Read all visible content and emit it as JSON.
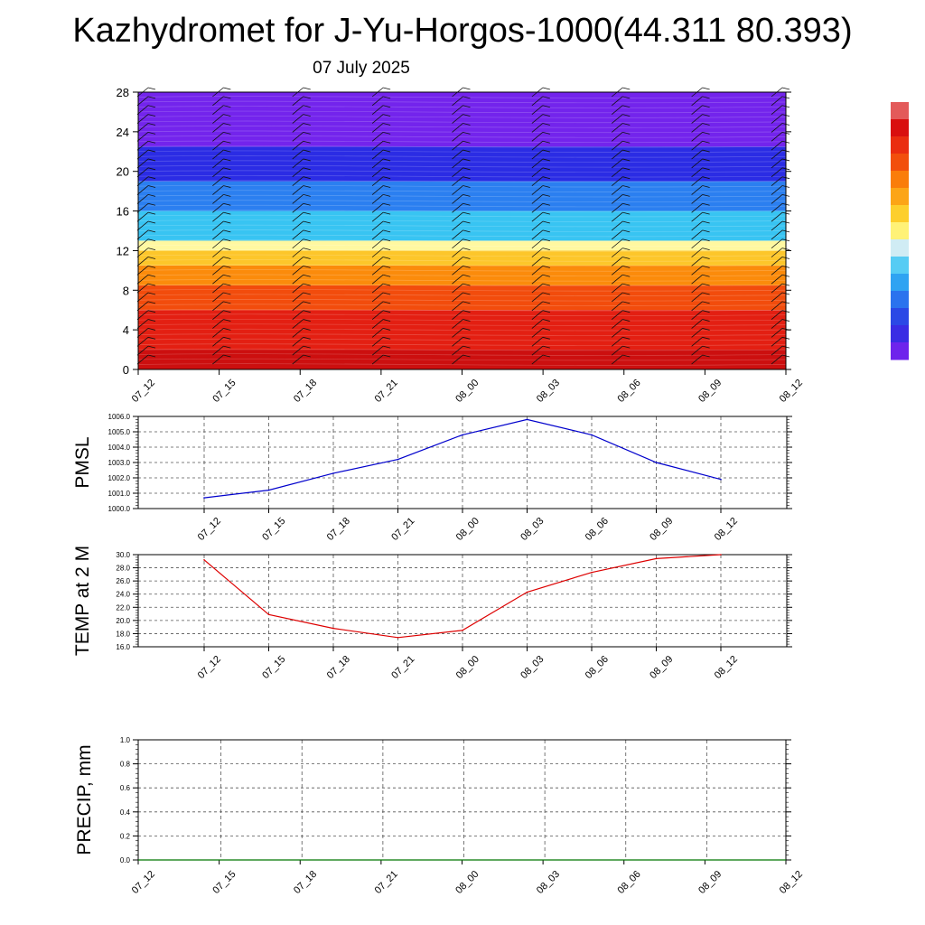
{
  "header": {
    "title": "Kazhydromet for J-Yu-Horgos-1000(44.311 80.393)",
    "date": "07 July 2025"
  },
  "chart_data": [
    {
      "type": "heatmap",
      "y_ticks": [
        "0",
        "4",
        "8",
        "12",
        "16",
        "20",
        "24",
        "28"
      ],
      "ylim": [
        0,
        28
      ],
      "x_ticks": [
        "07_12",
        "07_15",
        "07_18",
        "07_21",
        "08_00",
        "08_03",
        "08_06",
        "08_09",
        "08_12"
      ],
      "color_bands": [
        {
          "from": 0,
          "to": 2,
          "color": "#cc0f0f"
        },
        {
          "from": 2,
          "to": 6,
          "color": "#e31f12"
        },
        {
          "from": 6,
          "to": 8.5,
          "color": "#f24c0c"
        },
        {
          "from": 8.5,
          "to": 10.5,
          "color": "#fb8b0b"
        },
        {
          "from": 10.5,
          "to": 12,
          "color": "#fdc62a"
        },
        {
          "from": 12,
          "to": 13,
          "color": "#fff8a0"
        },
        {
          "from": 13,
          "to": 16,
          "color": "#38c4f2"
        },
        {
          "from": 16,
          "to": 19,
          "color": "#2b7ff0"
        },
        {
          "from": 19,
          "to": 22.5,
          "color": "#2b2ce4"
        },
        {
          "from": 22.5,
          "to": 28,
          "color": "#7324ec"
        }
      ]
    },
    {
      "type": "line",
      "ylabel": "PMSL",
      "x": [
        "07_12",
        "07_15",
        "07_18",
        "07_21",
        "08_00",
        "08_03",
        "08_06",
        "08_09",
        "08_12"
      ],
      "series": [
        {
          "values": [
            1000.7,
            1001.2,
            1002.3,
            1003.2,
            1004.8,
            1005.8,
            1004.8,
            1003.0,
            1001.9
          ],
          "color": "#0000cc"
        }
      ],
      "ylim": [
        1000,
        1006
      ],
      "y_ticks": [
        "1000.0",
        "1001.0",
        "1002.0",
        "1003.0",
        "1004.0",
        "1005.0",
        "1006.0"
      ]
    },
    {
      "type": "line",
      "ylabel": "TEMP at 2 M",
      "x": [
        "07_12",
        "07_15",
        "07_18",
        "07_21",
        "08_00",
        "08_03",
        "08_06",
        "08_09",
        "08_12"
      ],
      "series": [
        {
          "values": [
            29.2,
            20.9,
            18.8,
            17.4,
            18.5,
            24.3,
            27.3,
            29.4,
            30.0
          ],
          "color": "#dd0000"
        }
      ],
      "ylim": [
        16,
        30
      ],
      "y_ticks": [
        "16.0",
        "18.0",
        "20.0",
        "22.0",
        "24.0",
        "26.0",
        "28.0",
        "30.0"
      ]
    },
    {
      "type": "line",
      "ylabel": "PRECIP, mm",
      "x": [
        "07_12",
        "07_15",
        "07_18",
        "07_21",
        "08_00",
        "08_03",
        "08_06",
        "08_09",
        "08_12"
      ],
      "series": [
        {
          "values": [
            0,
            0,
            0,
            0,
            0,
            0,
            0,
            0,
            0
          ],
          "color": "#007700"
        }
      ],
      "ylim": [
        0,
        1
      ],
      "y_ticks": [
        "0.0",
        "0.2",
        "0.4",
        "0.6",
        "0.8",
        "1.0"
      ]
    }
  ],
  "colorbar": {
    "colors": [
      "#e35a5a",
      "#d90f0f",
      "#ea2d10",
      "#f24f0c",
      "#fa7d0a",
      "#fca516",
      "#fdcf2c",
      "#fff277",
      "#d0ecf4",
      "#56ccf4",
      "#2fa3f2",
      "#2b73ee",
      "#2b48e6",
      "#3a2ce4",
      "#6e24ec"
    ]
  }
}
